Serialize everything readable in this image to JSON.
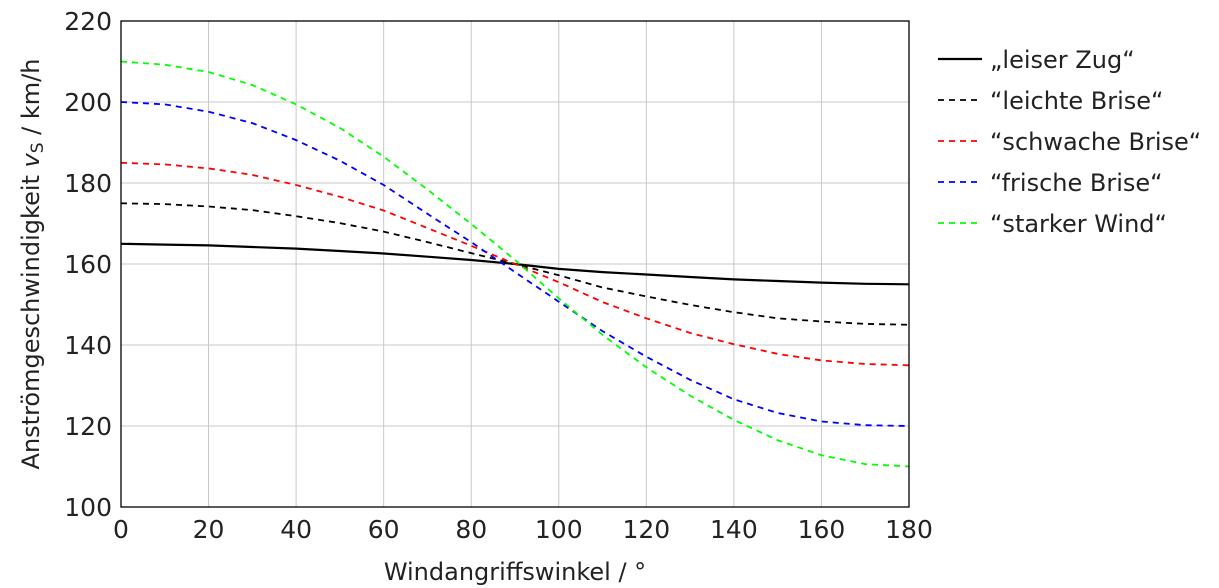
{
  "chart_data": {
    "type": "line",
    "xlabel": "Windangriffswinkel / °",
    "ylabel_main": "Anströmgeschwindigkeit ",
    "ylabel_symbol": "v",
    "ylabel_sub": "S",
    "ylabel_unit": " / km/h",
    "xlim": [
      0,
      180
    ],
    "ylim": [
      100,
      220
    ],
    "xticks": [
      0,
      20,
      40,
      60,
      80,
      100,
      120,
      140,
      160,
      180
    ],
    "yticks": [
      100,
      120,
      140,
      160,
      180,
      200,
      220
    ],
    "grid": true,
    "legend_position": "right",
    "x": [
      0,
      10,
      20,
      30,
      40,
      50,
      60,
      70,
      80,
      90,
      100,
      110,
      120,
      130,
      140,
      150,
      160,
      170,
      180
    ],
    "series": [
      {
        "name": "„leiser Zug“",
        "color": "#000000",
        "dash": "solid",
        "values": [
          165.0,
          164.8,
          164.6,
          164.2,
          163.8,
          163.2,
          162.6,
          161.8,
          161.0,
          160.0,
          158.8,
          158.0,
          157.4,
          156.8,
          156.2,
          155.8,
          155.4,
          155.1,
          155.0
        ]
      },
      {
        "name": "“leichte Brise“",
        "color": "#000000",
        "dash": "dashed",
        "values": [
          175.0,
          174.8,
          174.2,
          173.3,
          171.8,
          170.1,
          168.0,
          165.4,
          162.7,
          160.0,
          157.2,
          154.2,
          152.0,
          149.9,
          148.1,
          146.6,
          145.8,
          145.2,
          145.0
        ]
      },
      {
        "name": "“schwache Brise“",
        "color": "#ff0000",
        "dash": "dashed",
        "values": [
          185.0,
          184.6,
          183.6,
          182.0,
          179.5,
          176.6,
          173.2,
          168.9,
          164.5,
          160.0,
          155.5,
          150.6,
          146.6,
          143.0,
          140.2,
          137.8,
          136.2,
          135.3,
          135.0
        ]
      },
      {
        "name": "“frische Brise“",
        "color": "#0000ff",
        "dash": "dashed",
        "values": [
          200.0,
          199.4,
          197.6,
          194.8,
          190.6,
          185.5,
          179.5,
          172.4,
          165.4,
          158.0,
          150.7,
          143.4,
          137.1,
          131.4,
          126.6,
          123.2,
          121.1,
          120.2,
          120.0
        ]
      },
      {
        "name": "“starker Wind“",
        "color": "#00ff00",
        "dash": "dashed",
        "values": [
          210.0,
          209.2,
          207.4,
          204.2,
          199.4,
          193.6,
          186.5,
          178.4,
          169.9,
          161.0,
          151.5,
          142.5,
          134.5,
          127.5,
          121.5,
          116.5,
          112.8,
          110.6,
          110.0
        ]
      }
    ]
  }
}
